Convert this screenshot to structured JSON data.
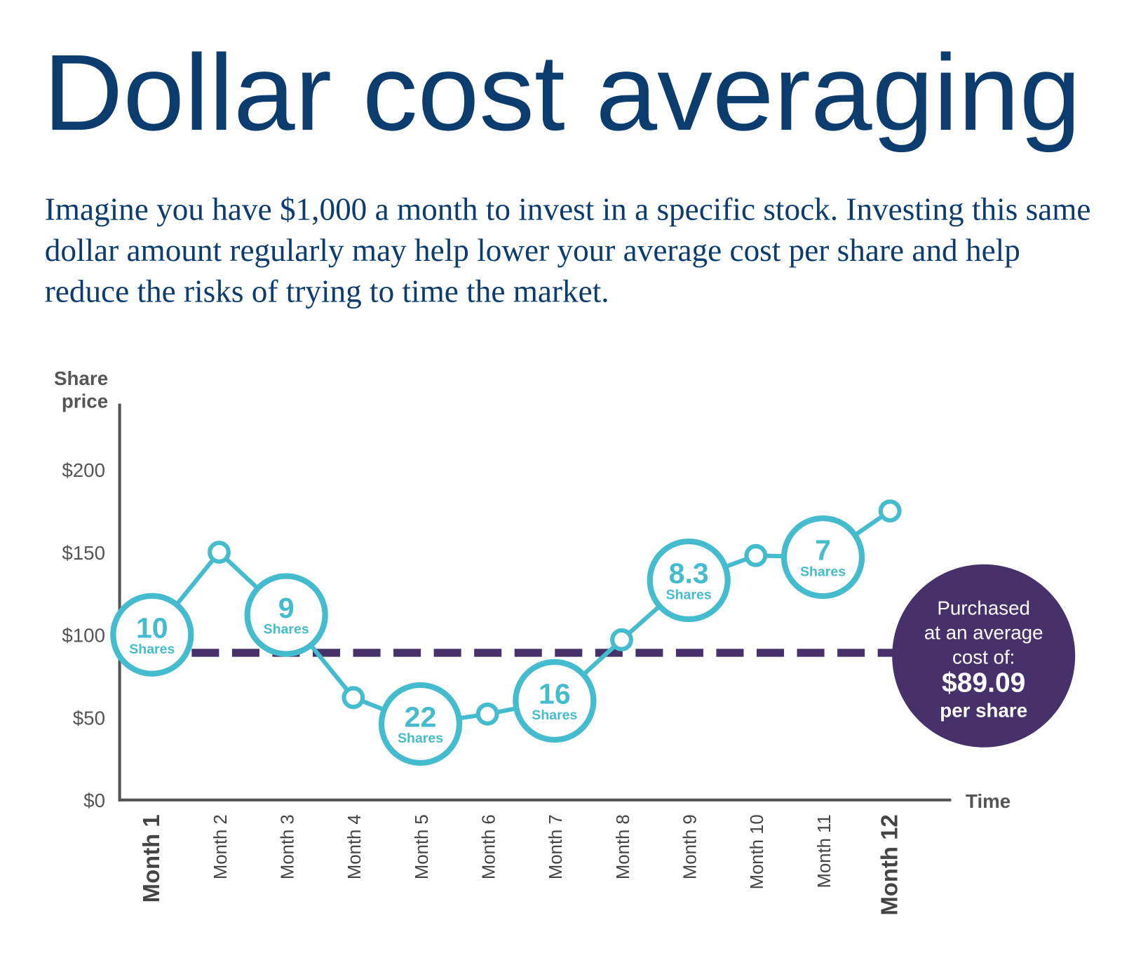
{
  "chart_data": {
    "type": "line",
    "title": "Dollar cost averaging",
    "subtitle": "Imagine you have $1,000 a month to invest in a specific stock. Investing this same dollar amount regularly may help lower your average cost per share and help reduce the risks of trying to time the market.",
    "ylabel_lines": [
      "Share",
      "price"
    ],
    "xlabel": "Time",
    "categories": [
      "Month 1",
      "Month 2",
      "Month 3",
      "Month 4",
      "Month 5",
      "Month 6",
      "Month 7",
      "Month 8",
      "Month 9",
      "Month 10",
      "Month 11",
      "Month 12"
    ],
    "values": [
      100,
      150,
      112,
      62,
      46,
      52,
      60,
      97,
      133,
      148,
      147,
      175
    ],
    "color": "#45bccd",
    "shares": [
      10,
      null,
      9,
      null,
      22,
      null,
      16,
      null,
      8.3,
      null,
      7,
      null
    ],
    "shares_label": "Shares",
    "ylim": [
      0,
      240
    ],
    "yticks": [
      {
        "value": 0,
        "label": "$0"
      },
      {
        "value": 50,
        "label": "$50"
      },
      {
        "value": 100,
        "label": "$100"
      },
      {
        "value": 150,
        "label": "$150"
      },
      {
        "value": 200,
        "label": "$200"
      }
    ],
    "grid": false,
    "average": {
      "value": 89.09,
      "label": "$89.09",
      "color": "#47316b"
    },
    "callout_lines": [
      "Purchased",
      "at an average",
      "cost of:"
    ],
    "callout_suffix": "per share"
  }
}
